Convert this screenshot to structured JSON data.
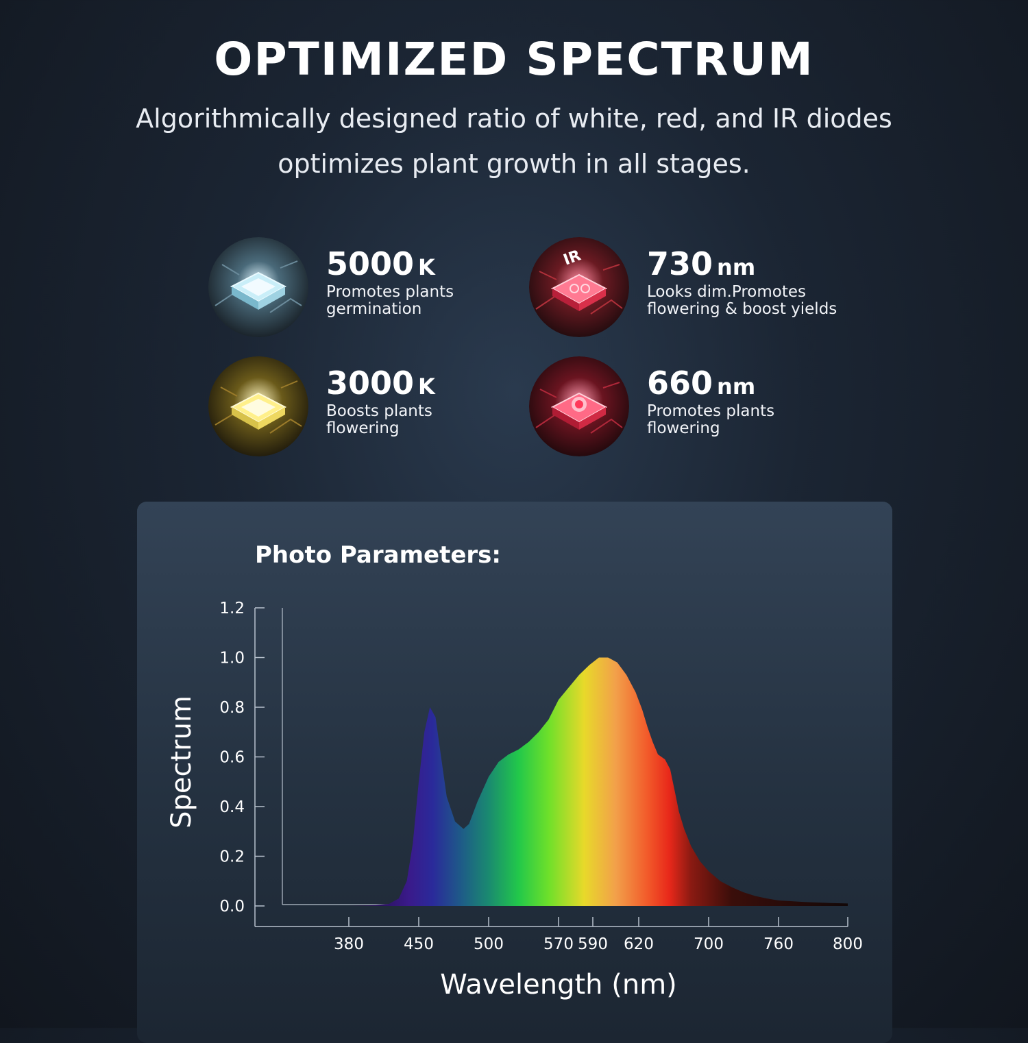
{
  "header": {
    "title": "OPTIMIZED SPECTRUM",
    "subtitle": "Algorithmically designed ratio of white, red, and IR diodes optimizes plant growth in all stages."
  },
  "features": [
    {
      "value": "5000",
      "unit": "K",
      "desc_line1": "Promotes plants",
      "desc_line2": "germination",
      "icon": "white-led-chip-icon",
      "color": "#bfe6f2"
    },
    {
      "value": "730",
      "unit": "nm",
      "desc_line1": "Looks dim.Promotes",
      "desc_line2": "flowering & boost yields",
      "icon": "ir-led-chip-icon",
      "color": "#ff4a6a"
    },
    {
      "value": "3000",
      "unit": "K",
      "desc_line1": "Boosts plants",
      "desc_line2": "flowering",
      "icon": "warm-white-led-chip-icon",
      "color": "#ffe97a"
    },
    {
      "value": "660",
      "unit": "nm",
      "desc_line1": "Promotes plants",
      "desc_line2": "flowering",
      "icon": "red-led-chip-icon",
      "color": "#ff3a5a"
    }
  ],
  "panel": {
    "title": "Photo Parameters:"
  },
  "chart_data": {
    "type": "area",
    "xlabel": "Wavelength (nm)",
    "ylabel": "Spectrum",
    "ylim": [
      0,
      1.2
    ],
    "yticks": [
      "0.0",
      "0.2",
      "0.4",
      "0.6",
      "0.8",
      "1.0",
      "1.2"
    ],
    "xticks": [
      "380",
      "450",
      "500",
      "570",
      "590",
      "620",
      "700",
      "760",
      "800"
    ],
    "grid": false,
    "series": [
      {
        "x": [
          380,
          400,
          420,
          430,
          438,
          444,
          450,
          454,
          458,
          462,
          466,
          470,
          476,
          482,
          486,
          492,
          500,
          510,
          520,
          530,
          540,
          550,
          560,
          570,
          576,
          582,
          588,
          594,
          600,
          606,
          612,
          618,
          624,
          630,
          636,
          642,
          650,
          656,
          662,
          666,
          672,
          680,
          690,
          700,
          710,
          720,
          730,
          740,
          750,
          760,
          775,
          790,
          800
        ],
        "y": [
          0.0,
          0.002,
          0.008,
          0.03,
          0.1,
          0.25,
          0.5,
          0.7,
          0.8,
          0.76,
          0.6,
          0.44,
          0.34,
          0.31,
          0.33,
          0.42,
          0.52,
          0.58,
          0.61,
          0.63,
          0.66,
          0.7,
          0.75,
          0.83,
          0.88,
          0.93,
          0.97,
          1.0,
          1.0,
          0.98,
          0.93,
          0.86,
          0.79,
          0.72,
          0.66,
          0.61,
          0.59,
          0.55,
          0.45,
          0.38,
          0.31,
          0.24,
          0.18,
          0.14,
          0.1,
          0.075,
          0.055,
          0.04,
          0.03,
          0.022,
          0.016,
          0.012,
          0.01
        ]
      }
    ],
    "gradient_stops": [
      {
        "x": 380,
        "color": "#1a0a2e"
      },
      {
        "x": 440,
        "color": "#3a1a8a"
      },
      {
        "x": 460,
        "color": "#2a2a9a"
      },
      {
        "x": 480,
        "color": "#1e5a88"
      },
      {
        "x": 500,
        "color": "#1a8a70"
      },
      {
        "x": 530,
        "color": "#22c84a"
      },
      {
        "x": 560,
        "color": "#6ee02a"
      },
      {
        "x": 585,
        "color": "#e8d92a"
      },
      {
        "x": 605,
        "color": "#f2a04a"
      },
      {
        "x": 630,
        "color": "#f25a2a"
      },
      {
        "x": 655,
        "color": "#e8281a"
      },
      {
        "x": 680,
        "color": "#8a1a12"
      },
      {
        "x": 720,
        "color": "#3a0e0a"
      },
      {
        "x": 800,
        "color": "#120808"
      }
    ]
  }
}
